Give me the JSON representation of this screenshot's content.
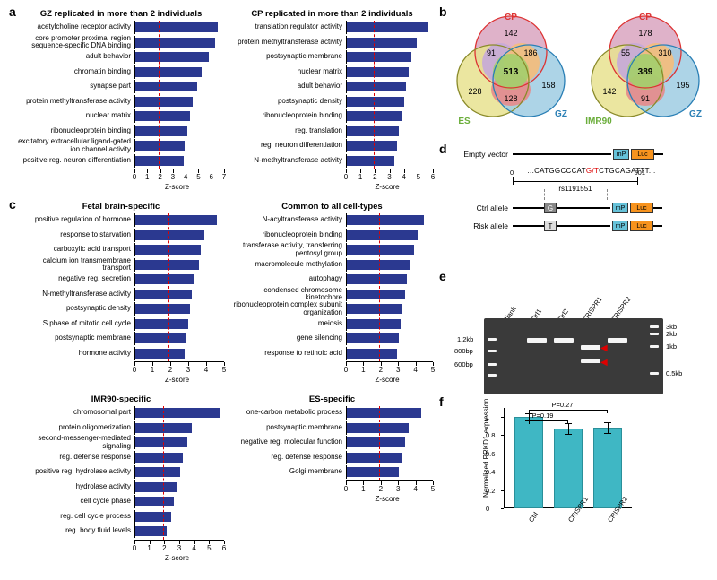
{
  "panel_labels": {
    "a": "a",
    "b": "b",
    "c": "c",
    "d": "d",
    "e": "e",
    "f": "f"
  },
  "charts": {
    "a1": {
      "title": "GZ replicated in more than 2 individuals",
      "xmax": 7,
      "redline": 2,
      "x_title": "Z-score",
      "ticks": [
        0,
        1,
        2,
        3,
        4,
        5,
        6,
        7
      ],
      "items": [
        {
          "label": "acetylcholine receptor activity",
          "value": 6.5
        },
        {
          "label": "core promoter proximal region sequence-specific DNA binding",
          "value": 6.3
        },
        {
          "label": "adult behavior",
          "value": 5.8
        },
        {
          "label": "chromatin binding",
          "value": 5.2
        },
        {
          "label": "synapse part",
          "value": 4.9
        },
        {
          "label": "protein methyltransferase activity",
          "value": 4.5
        },
        {
          "label": "nuclear matrix",
          "value": 4.3
        },
        {
          "label": "ribonucleoprotein binding",
          "value": 4.1
        },
        {
          "label": "excitatory extracellular ligand-gated ion channel activity",
          "value": 3.9
        },
        {
          "label": "positive reg. neuron differentiation",
          "value": 3.8
        }
      ]
    },
    "a2": {
      "title": "CP replicated in more than 2 individuals",
      "xmax": 6,
      "redline": 2,
      "x_title": "Z-score",
      "ticks": [
        0,
        1,
        2,
        3,
        4,
        5,
        6
      ],
      "items": [
        {
          "label": "translation regulator activity",
          "value": 5.6
        },
        {
          "label": "protein methyltransferase activity",
          "value": 4.9
        },
        {
          "label": "postsynaptic membrane",
          "value": 4.5
        },
        {
          "label": "nuclear matrix",
          "value": 4.3
        },
        {
          "label": "adult behavior",
          "value": 4.1
        },
        {
          "label": "postsynaptic density",
          "value": 4.0
        },
        {
          "label": "ribonucleoprotein binding",
          "value": 3.8
        },
        {
          "label": "reg. translation",
          "value": 3.6
        },
        {
          "label": "reg. neuron differentiation",
          "value": 3.5
        },
        {
          "label": "N-methyltransferase activity",
          "value": 3.3
        }
      ]
    },
    "c1": {
      "title": "Fetal brain-specific",
      "xmax": 5,
      "redline": 2,
      "x_title": "Z-score",
      "ticks": [
        0,
        1,
        2,
        3,
        4,
        5
      ],
      "items": [
        {
          "label": "positive regulation of hormone",
          "value": 4.6
        },
        {
          "label": "response to starvation",
          "value": 3.9
        },
        {
          "label": "carboxylic acid transport",
          "value": 3.7
        },
        {
          "label": "calcium ion transmembrane transport",
          "value": 3.6
        },
        {
          "label": "negative reg. secretion",
          "value": 3.3
        },
        {
          "label": "N-methyltransferase activity",
          "value": 3.2
        },
        {
          "label": "postsynaptic density",
          "value": 3.1
        },
        {
          "label": "S phase of mitotic cell cycle",
          "value": 3.0
        },
        {
          "label": "postsynaptic membrane",
          "value": 2.9
        },
        {
          "label": "hormone activity",
          "value": 2.8
        }
      ]
    },
    "c2": {
      "title": "Common to all cell-types",
      "xmax": 5,
      "redline": 2,
      "x_title": "Z-score",
      "ticks": [
        0,
        1,
        2,
        3,
        4,
        5
      ],
      "items": [
        {
          "label": "N-acyltransferase activity",
          "value": 4.5
        },
        {
          "label": "ribonucleoprotein binding",
          "value": 4.1
        },
        {
          "label": "transferase activity, transferring pentosyl group",
          "value": 3.9
        },
        {
          "label": "macromolecule methylation",
          "value": 3.7
        },
        {
          "label": "autophagy",
          "value": 3.5
        },
        {
          "label": "condensed chromosome kinetochore",
          "value": 3.4
        },
        {
          "label": "ribonucleoprotein complex subunit organization",
          "value": 3.2
        },
        {
          "label": "meiosis",
          "value": 3.1
        },
        {
          "label": "gene silencing",
          "value": 3.0
        },
        {
          "label": "response to retinoic acid",
          "value": 2.9
        }
      ]
    },
    "c3": {
      "title": "IMR90-specific",
      "xmax": 6,
      "redline": 2,
      "x_title": "Z-score",
      "ticks": [
        0,
        1,
        2,
        3,
        4,
        5,
        6
      ],
      "items": [
        {
          "label": "chromosomal part",
          "value": 5.7
        },
        {
          "label": "protein oligomerization",
          "value": 3.8
        },
        {
          "label": "second-messenger-mediated signaling",
          "value": 3.5
        },
        {
          "label": "reg. defense response",
          "value": 3.2
        },
        {
          "label": "positive reg. hydrolase activity",
          "value": 3.0
        },
        {
          "label": "hydrolase activity",
          "value": 2.8
        },
        {
          "label": "cell cycle phase",
          "value": 2.6
        },
        {
          "label": "reg. cell cycle process",
          "value": 2.4
        },
        {
          "label": "reg. body fluid levels",
          "value": 2.1
        }
      ]
    },
    "c4": {
      "title": "ES-specific",
      "xmax": 5,
      "redline": 2,
      "x_title": "Z-score",
      "ticks": [
        0,
        1,
        2,
        3,
        4,
        5
      ],
      "items": [
        {
          "label": "one-carbon metabolic process",
          "value": 4.3
        },
        {
          "label": "postsynaptic membrane",
          "value": 3.6
        },
        {
          "label": "negative reg. molecular function",
          "value": 3.4
        },
        {
          "label": "reg. defense response",
          "value": 3.2
        },
        {
          "label": "Golgi membrane",
          "value": 3.0
        }
      ]
    }
  },
  "bar_color": "#2b3990",
  "redline_color": "#d00",
  "venn": {
    "left": {
      "labels": {
        "top": "CP",
        "left": "ES",
        "right": "GZ"
      },
      "colors": {
        "cp": "#d9a5c0",
        "es": "#e8e28f",
        "gz": "#9fcde3",
        "center": "#a5cd6e",
        "cp_es": "#c5a9d9",
        "cp_gz": "#f5bc7a",
        "es_gz": "#e78a8a"
      },
      "numbers": {
        "cp": 142,
        "es": 228,
        "gz": 158,
        "cp_es": 91,
        "cp_gz": 186,
        "es_gz": 128,
        "all": 513
      }
    },
    "right": {
      "labels": {
        "top": "CP",
        "left": "IMR90",
        "right": "GZ"
      },
      "colors": {
        "cp": "#d9a5c0",
        "es": "#e8e28f",
        "gz": "#9fcde3",
        "center": "#a5cd6e",
        "cp_es": "#c5a9d9",
        "cp_gz": "#f5bc7a",
        "es_gz": "#e78a8a"
      },
      "numbers": {
        "cp": 178,
        "es": 142,
        "gz": 195,
        "cp_es": 55,
        "cp_gz": 310,
        "es_gz": 91,
        "all": 389
      }
    }
  },
  "panel_d": {
    "empty_label": "Empty vector",
    "ctrl_label": "Ctrl allele",
    "risk_label": "Risk allele",
    "mp": "mP",
    "luc": "Luc",
    "ctrl_letter": "G",
    "risk_letter": "T",
    "ctrl_bg": "#888888",
    "risk_bg": "#dddddd",
    "seq_prefix": "...CATGGCCCAT",
    "seq_mid": "G/T",
    "seq_suffix": "CTGCAGATTT...",
    "rs": "rs1191551",
    "scale_left": "0",
    "scale_right": "501"
  },
  "panel_e": {
    "lanes": [
      "Blank",
      "Ctrl1",
      "Ctrl2",
      "CRISPR1",
      "CRISPR2"
    ],
    "ladder_left": [
      "1.2kb",
      "800bp",
      "600bp"
    ],
    "ladder_right": [
      "3kb",
      "2kb",
      "1kb",
      "0.5kb"
    ]
  },
  "panel_f": {
    "y_title": "Normalized PRKD1 expression",
    "bars": [
      {
        "label": "Ctrl",
        "value": 1.0,
        "err": 0.04
      },
      {
        "label": "CRISPR1",
        "value": 0.87,
        "err": 0.06
      },
      {
        "label": "CRISPR2",
        "value": 0.88,
        "err": 0.06
      }
    ],
    "bar_color": "#3fb7c4",
    "ymax": 1.0,
    "yticks": [
      0,
      0.2,
      0.4,
      0.6,
      0.8,
      1.0
    ],
    "sig1": "P=0.19",
    "sig2": "P=0.27"
  }
}
